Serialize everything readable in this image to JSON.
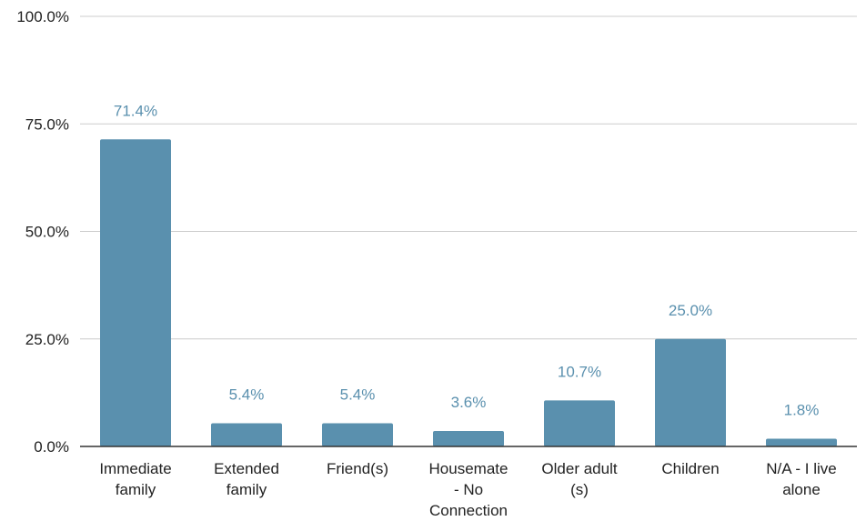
{
  "chart_data": {
    "type": "bar",
    "categories": [
      [
        "Immediate",
        "family"
      ],
      [
        "Extended",
        "family"
      ],
      [
        "Friend(s)"
      ],
      [
        "Housemate",
        "- No",
        "Connection"
      ],
      [
        "Older adult",
        "(s)"
      ],
      [
        "Children"
      ],
      [
        "N/A - I live",
        "alone"
      ]
    ],
    "values": [
      71.4,
      5.4,
      5.4,
      3.6,
      10.7,
      25.0,
      1.8
    ],
    "data_labels": [
      "71.4%",
      "5.4%",
      "5.4%",
      "3.6%",
      "10.7%",
      "25.0%",
      "1.8%"
    ],
    "y_ticks": [
      0,
      25,
      50,
      75,
      100
    ],
    "y_tick_labels": [
      "0.0%",
      "25.0%",
      "50.0%",
      "75.0%",
      "100.0%"
    ],
    "ylim": [
      0,
      100
    ],
    "grid": true,
    "bar_color": "#5a90ae",
    "label_color": "#5a90ae"
  }
}
